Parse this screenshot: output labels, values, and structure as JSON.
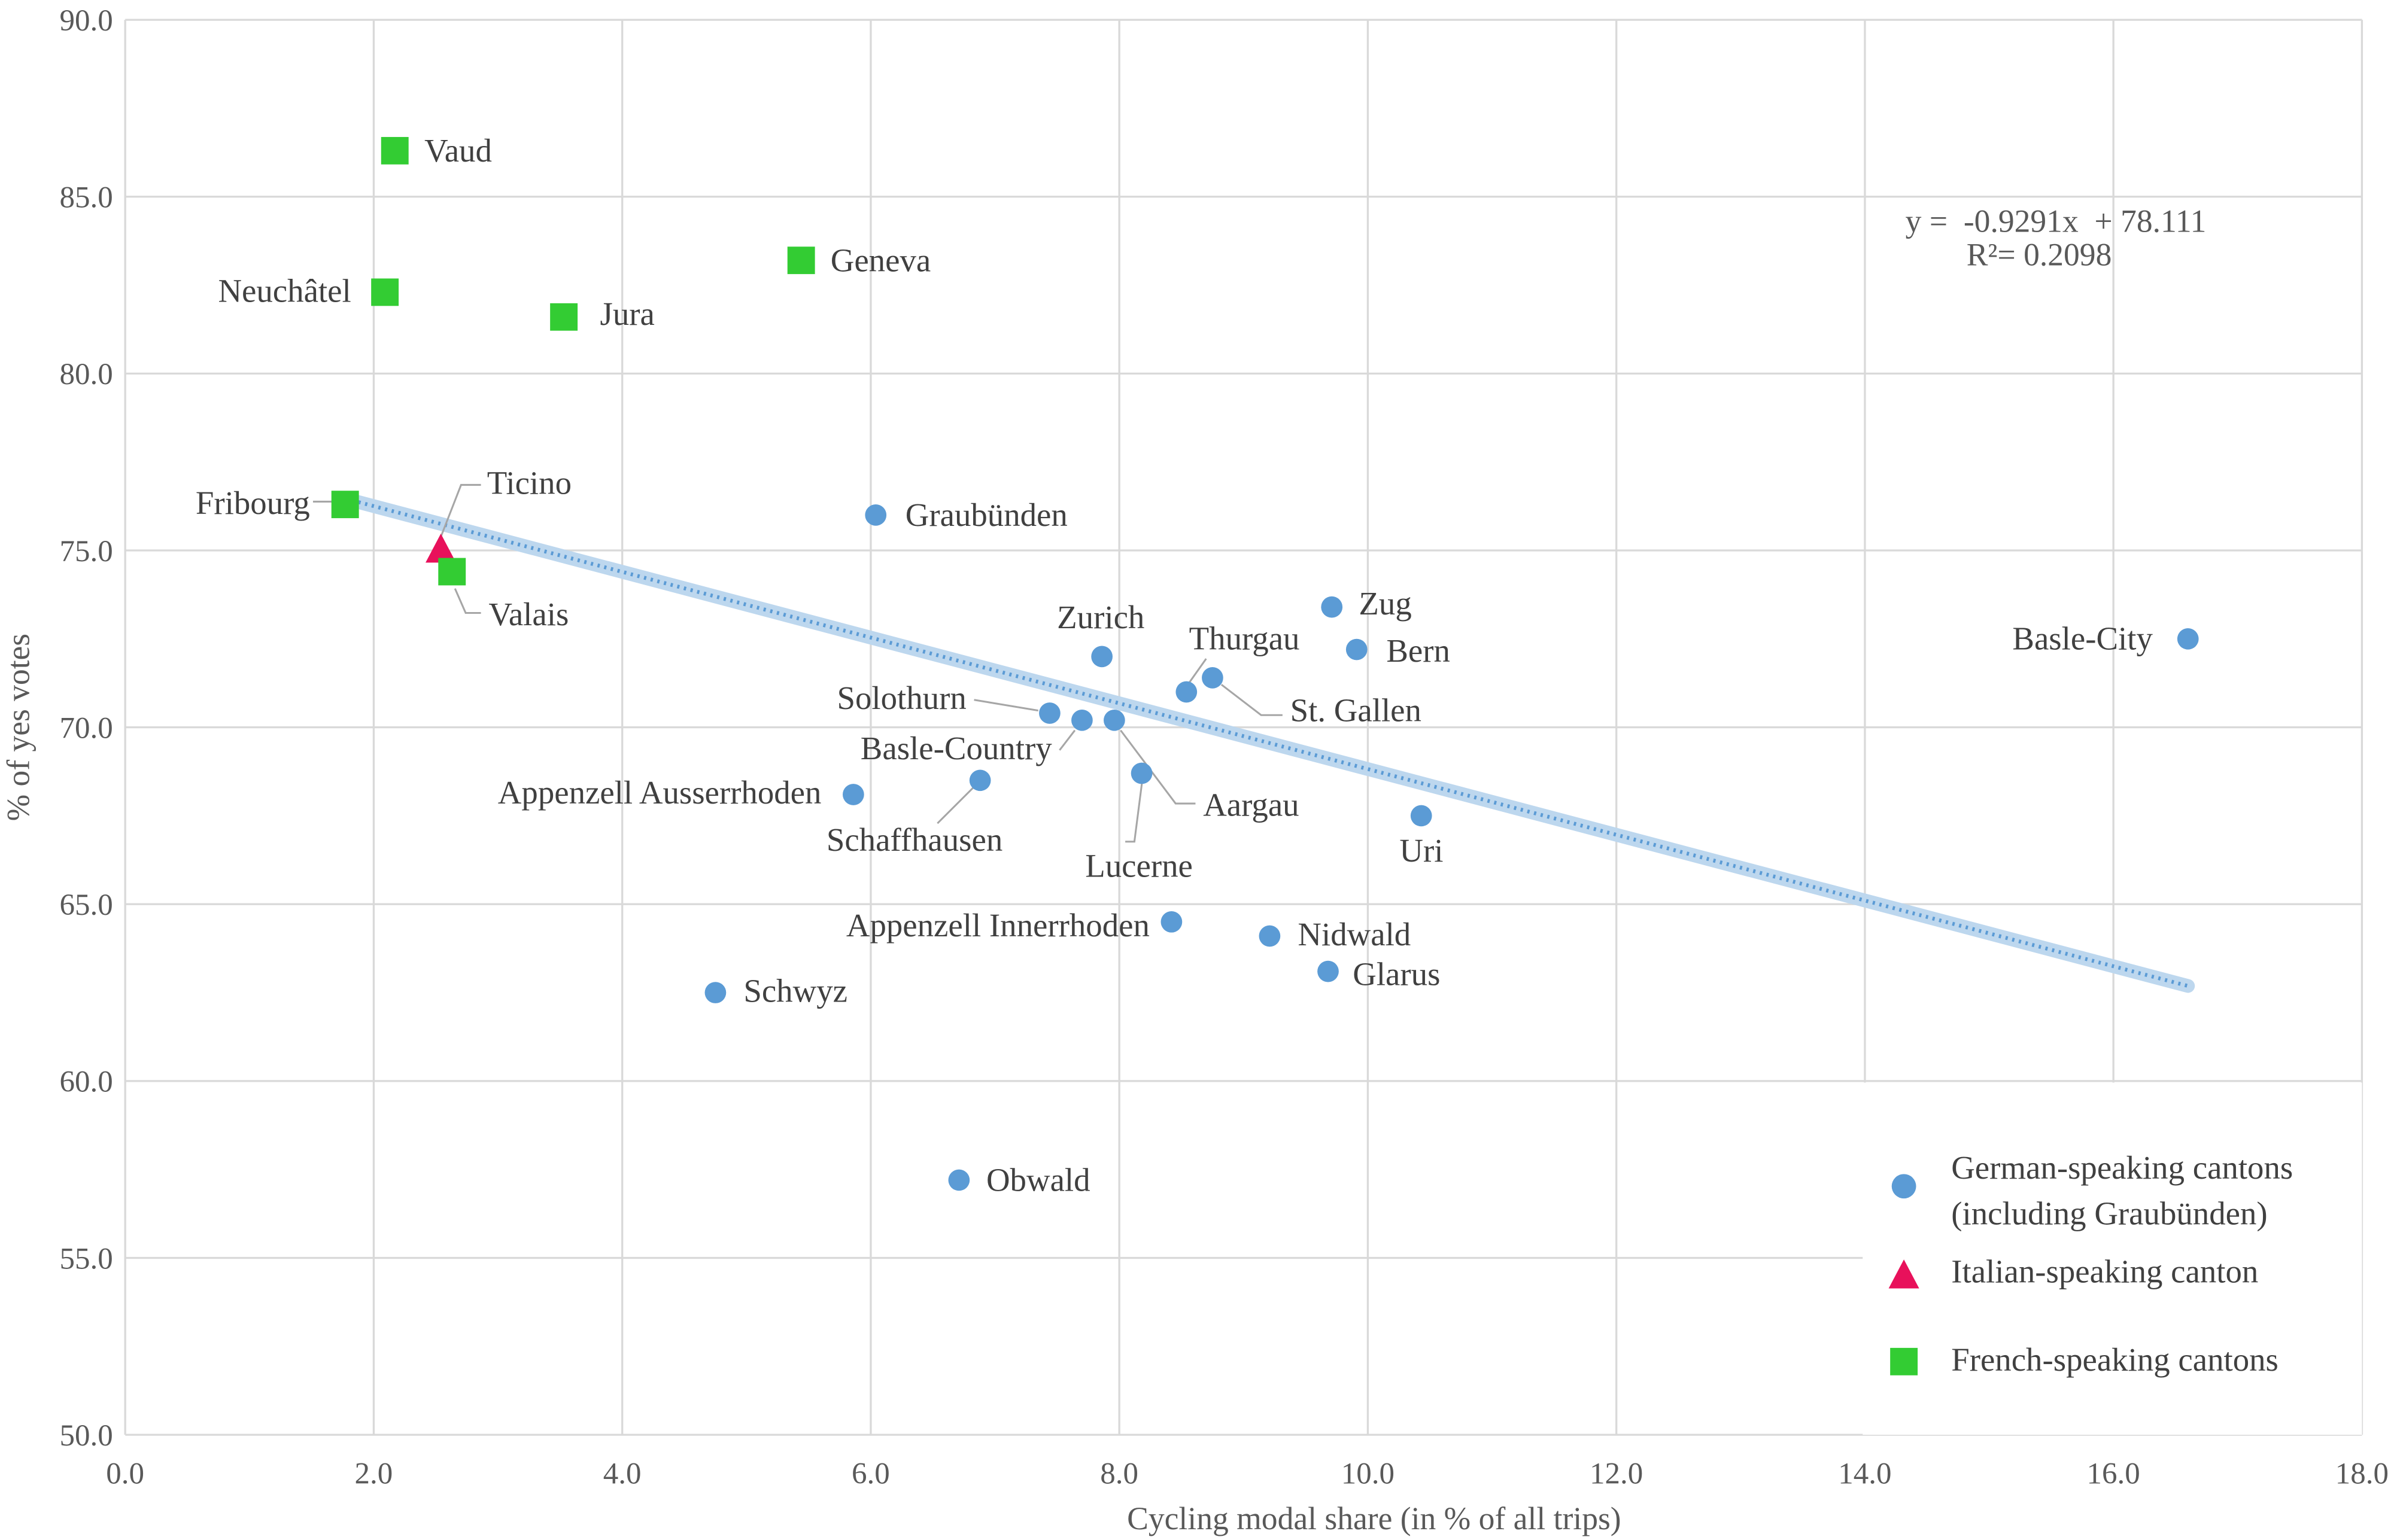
{
  "chart_data": {
    "type": "scatter",
    "title": "",
    "xlabel": "Cycling modal share (in % of all trips)",
    "ylabel": "% of yes votes",
    "xlim": [
      0,
      18
    ],
    "ylim": [
      50,
      90
    ],
    "xticks": [
      "0.0",
      "2.0",
      "4.0",
      "6.0",
      "8.0",
      "10.0",
      "12.0",
      "14.0",
      "16.0",
      "18.0"
    ],
    "yticks": [
      "50.0",
      "55.0",
      "60.0",
      "65.0",
      "70.0",
      "75.0",
      "80.0",
      "85.0",
      "90.0"
    ],
    "grid": true,
    "legend_position": "bottom-right",
    "colors": {
      "german": "#5B9BD5",
      "italian": "#E8115B",
      "french": "#33CC33",
      "trend": "#BDD7EE",
      "trend_dots": "#5B9BD5"
    },
    "series": [
      {
        "name": "German-speaking cantons",
        "name2": "(including Graubünden)",
        "marker": "circle",
        "points": [
          {
            "label": "Graubünden",
            "x": 6.04,
            "y": 76.0
          },
          {
            "label": "Zurich",
            "x": 7.86,
            "y": 72.0
          },
          {
            "label": "Zug",
            "x": 9.71,
            "y": 73.4
          },
          {
            "label": "Bern",
            "x": 9.91,
            "y": 72.2
          },
          {
            "label": "Basle-City",
            "x": 16.6,
            "y": 72.5
          },
          {
            "label": "Thurgau",
            "x": 8.54,
            "y": 71.0
          },
          {
            "label": "St. Gallen",
            "x": 8.75,
            "y": 71.4
          },
          {
            "label": "Solothurn",
            "x": 7.44,
            "y": 70.4
          },
          {
            "label": "Basle-Country",
            "x": 7.7,
            "y": 70.2
          },
          {
            "label": "Aargau",
            "x": 7.96,
            "y": 70.2
          },
          {
            "label": "Lucerne",
            "x": 8.18,
            "y": 68.7
          },
          {
            "label": "Schaffhausen",
            "x": 6.88,
            "y": 68.5
          },
          {
            "label": "Appenzell Ausserrhoden",
            "x": 5.86,
            "y": 68.1
          },
          {
            "label": "Uri",
            "x": 10.43,
            "y": 67.5
          },
          {
            "label": "Appenzell Innerrhoden",
            "x": 8.42,
            "y": 64.5
          },
          {
            "label": "Nidwald",
            "x": 9.21,
            "y": 64.1
          },
          {
            "label": "Glarus",
            "x": 9.68,
            "y": 63.1
          },
          {
            "label": "Schwyz",
            "x": 4.75,
            "y": 62.5
          },
          {
            "label": "Obwald",
            "x": 6.71,
            "y": 57.2
          }
        ]
      },
      {
        "name": "Italian-speaking canton",
        "marker": "triangle",
        "points": [
          {
            "label": "Ticino",
            "x": 2.54,
            "y": 75.0
          }
        ]
      },
      {
        "name": "French-speaking cantons",
        "marker": "square",
        "points": [
          {
            "label": "Vaud",
            "x": 2.17,
            "y": 86.3
          },
          {
            "label": "Neuchâtel",
            "x": 2.09,
            "y": 82.3
          },
          {
            "label": "Jura",
            "x": 3.53,
            "y": 81.6
          },
          {
            "label": "Geneva",
            "x": 5.44,
            "y": 83.2
          },
          {
            "label": "Fribourg",
            "x": 1.77,
            "y": 76.3
          },
          {
            "label": "Valais",
            "x": 2.63,
            "y": 74.4
          }
        ]
      }
    ],
    "trendline": {
      "slope": -0.9291,
      "intercept": 78.111,
      "x_range": [
        1.77,
        16.6
      ],
      "equation": "y =  -0.9291x  + 78.111",
      "r2": "R²= 0.2098"
    }
  }
}
